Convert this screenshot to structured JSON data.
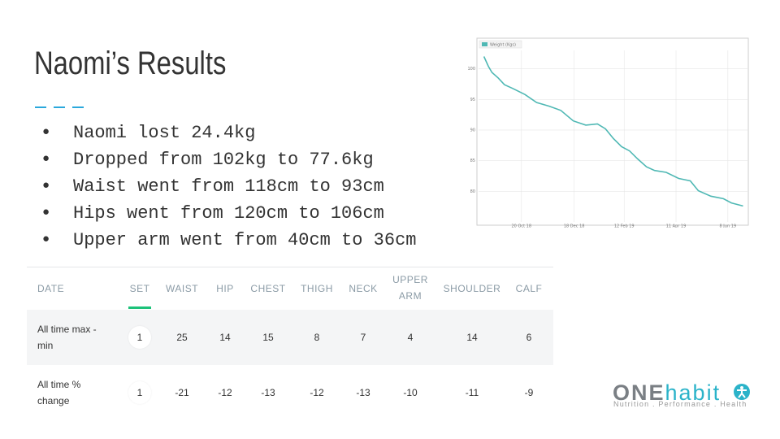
{
  "title": "Naomi’s Results",
  "bullets": [
    "Naomi lost 24.4kg",
    "Dropped from 102kg to 77.6kg",
    "Waist went from 118cm to 93cm",
    "Hips went from 120cm to 106cm",
    "Upper arm went from 40cm to 36cm"
  ],
  "table": {
    "headers": [
      "DATE",
      "SET",
      "WAIST",
      "HIP",
      "CHEST",
      "THIGH",
      "NECK",
      "UPPER ARM",
      "SHOULDER",
      "CALF"
    ],
    "rows": [
      [
        "All time max - min",
        1,
        25,
        14,
        15,
        8,
        7,
        4,
        14,
        6
      ],
      [
        "All time % change",
        1,
        -21,
        -12,
        -13,
        -12,
        -13,
        -10,
        -11,
        -9
      ]
    ]
  },
  "chart_data": {
    "type": "line",
    "x": [
      "2018-09-08",
      "2018-09-13",
      "2018-09-17",
      "2018-09-24",
      "2018-10-01",
      "2018-10-10",
      "2018-10-24",
      "2018-11-06",
      "2018-11-20",
      "2018-12-03",
      "2018-12-17",
      "2018-12-31",
      "2019-01-13",
      "2019-01-22",
      "2019-01-31",
      "2019-02-09",
      "2019-02-18",
      "2019-02-27",
      "2019-03-09",
      "2019-03-18",
      "2019-03-31",
      "2019-04-14",
      "2019-04-27",
      "2019-05-06",
      "2019-05-20",
      "2019-06-03",
      "2019-06-12",
      "2019-06-25"
    ],
    "series": [
      {
        "name": "Weight (Kgs)",
        "color": "#4fb8b4",
        "values": [
          102,
          100.4,
          99.4,
          98.5,
          97.4,
          96.8,
          95.8,
          94.5,
          93.9,
          93.2,
          91.5,
          90.8,
          91.0,
          90.2,
          88.6,
          87.3,
          86.6,
          85.3,
          84.0,
          83.4,
          83.1,
          82.1,
          81.7,
          80.1,
          79.2,
          78.8,
          78.1,
          77.6
        ]
      }
    ],
    "xlim": [
      "2018-09-02",
      "2019-06-30"
    ],
    "xticks": [
      {
        "value": "2018-10-20",
        "label": "20 Oct 18"
      },
      {
        "value": "2018-12-18",
        "label": "18 Dec 18"
      },
      {
        "value": "2019-02-12",
        "label": "12 Feb 19"
      },
      {
        "value": "2019-04-11",
        "label": "11 Apr 19"
      },
      {
        "value": "2019-06-08",
        "label": "8 Jun 19"
      }
    ],
    "ylim": [
      75,
      103
    ],
    "yticks": [
      80,
      85,
      90,
      95,
      100
    ],
    "grid": true
  },
  "logo": {
    "prefix": "ONE",
    "suffix": "habit",
    "tagline": "Nutrition . Performance . Health"
  }
}
